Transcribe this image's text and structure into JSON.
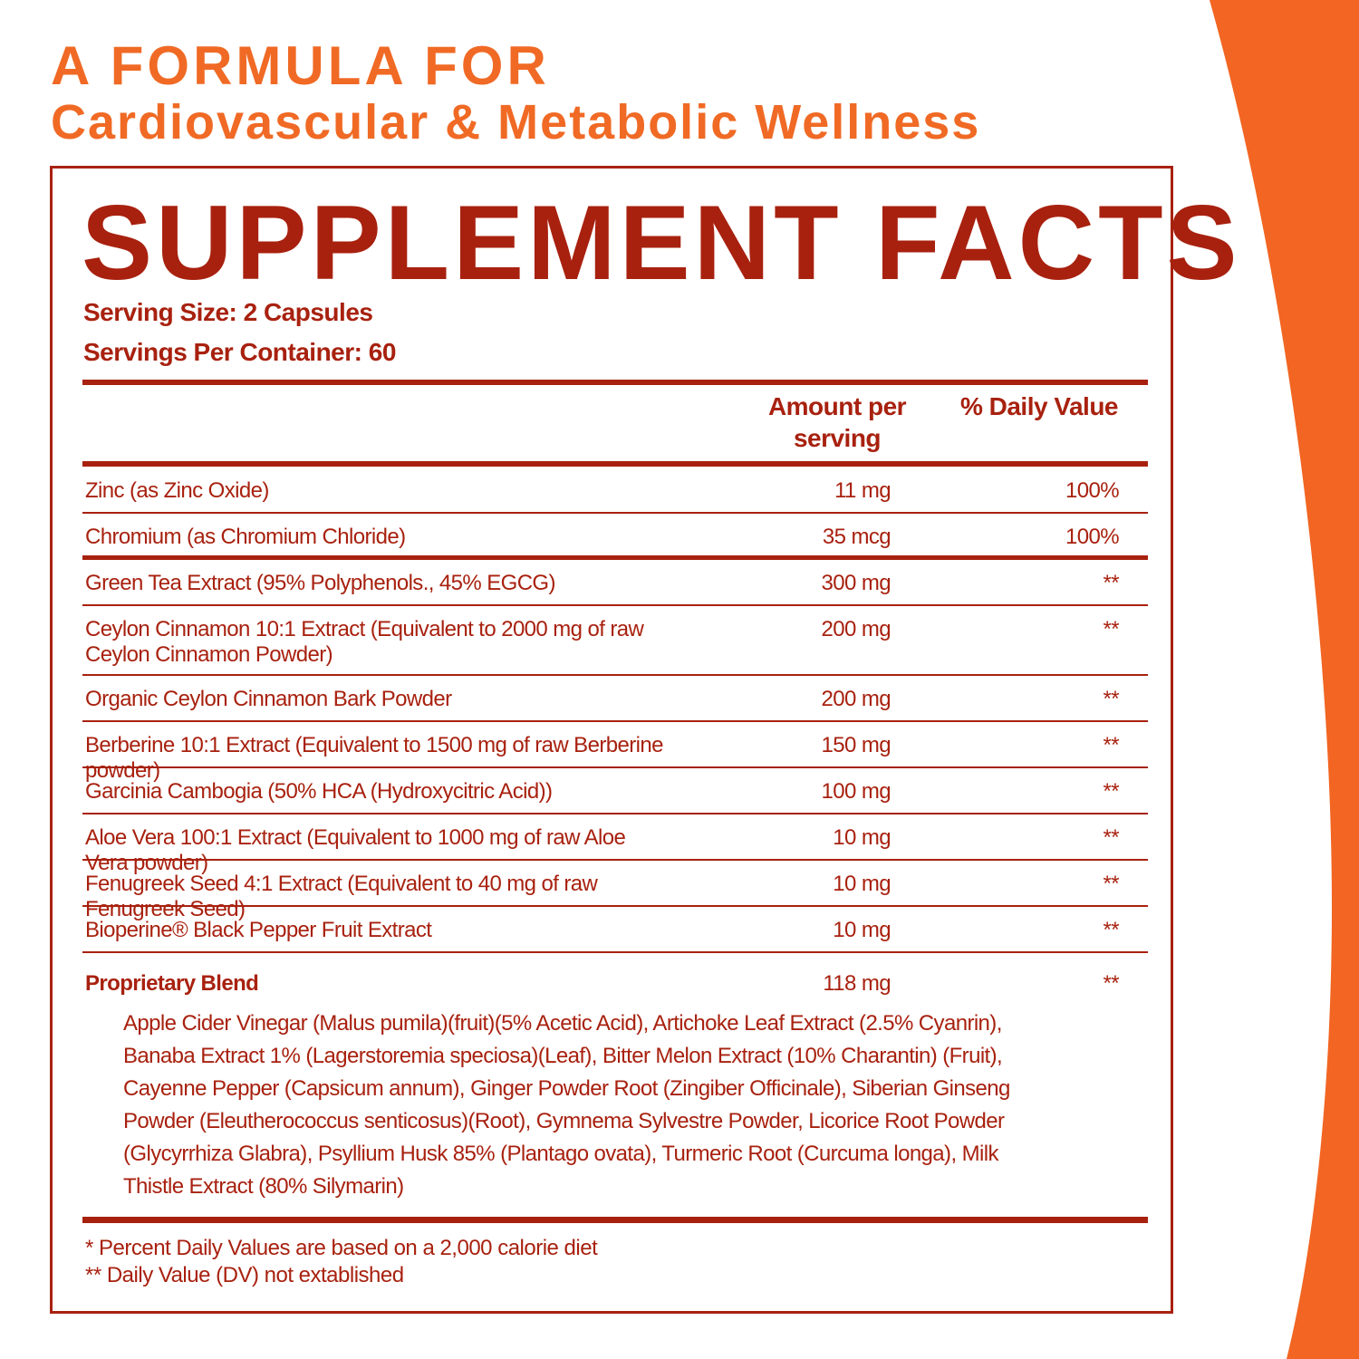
{
  "header": {
    "line1": "A FORMULA FOR",
    "line2": "Cardiovascular & Metabolic Wellness"
  },
  "facts": {
    "title": "SUPPLEMENT FACTS",
    "serving_size": "Serving Size: 2 Capsules",
    "servings_per_container": "Servings Per Container: 60",
    "columns": [
      "Amount per serving",
      "% Daily Value"
    ],
    "rows": [
      {
        "name": "Zinc (as Zinc Oxide)",
        "amount": "11 mg",
        "dv": "100%"
      },
      {
        "name": "Chromium (as Chromium Chloride)",
        "amount": "35 mcg",
        "dv": "100%"
      },
      {
        "name": "Green Tea Extract (95% Polyphenols., 45% EGCG)",
        "amount": "300 mg",
        "dv": "**"
      },
      {
        "name": "Ceylon Cinnamon 10:1 Extract (Equivalent to 2000 mg of raw Ceylon Cinnamon Powder)",
        "amount": "200 mg",
        "dv": "**"
      },
      {
        "name": "Organic Ceylon Cinnamon Bark Powder",
        "amount": "200 mg",
        "dv": "**"
      },
      {
        "name": "Berberine 10:1 Extract (Equivalent to 1500 mg of raw Berberine powder)",
        "amount": "150 mg",
        "dv": "**"
      },
      {
        "name": "Garcinia Cambogia (50% HCA (Hydroxycitric Acid))",
        "amount": "100 mg",
        "dv": "**"
      },
      {
        "name": "Aloe Vera 100:1 Extract (Equivalent to 1000 mg of raw Aloe Vera powder)",
        "amount": "10 mg",
        "dv": "**"
      },
      {
        "name": "Fenugreek Seed 4:1 Extract (Equivalent to 40 mg of raw Fenugreek Seed)",
        "amount": "10 mg",
        "dv": "**"
      },
      {
        "name": "Bioperine® Black Pepper Fruit Extract",
        "amount": "10 mg",
        "dv": "**"
      }
    ],
    "blend": {
      "name": "Proprietary Blend",
      "amount": "118 mg",
      "dv": "**",
      "ingredients": "Apple Cider Vinegar (Malus pumila)(fruit)(5% Acetic Acid), Artichoke Leaf Extract (2.5% Cyanrin), Banaba Extract 1% (Lagerstoremia speciosa)(Leaf), Bitter Melon Extract (10% Charantin) (Fruit), Cayenne Pepper (Capsicum annum), Ginger Powder Root (Zingiber Officinale), Siberian Ginseng Powder (Eleutherococcus senticosus)(Root), Gymnema Sylvestre Powder, Licorice Root Powder (Glycyrrhiza Glabra), Psyllium Husk 85% (Plantago ovata), Turmeric Root (Curcuma longa), Milk Thistle Extract (80% Silymarin)"
    },
    "footnotes": [
      "* Percent Daily Values are based on a 2,000 calorie diet",
      "** Daily Value (DV) not extablished"
    ]
  }
}
